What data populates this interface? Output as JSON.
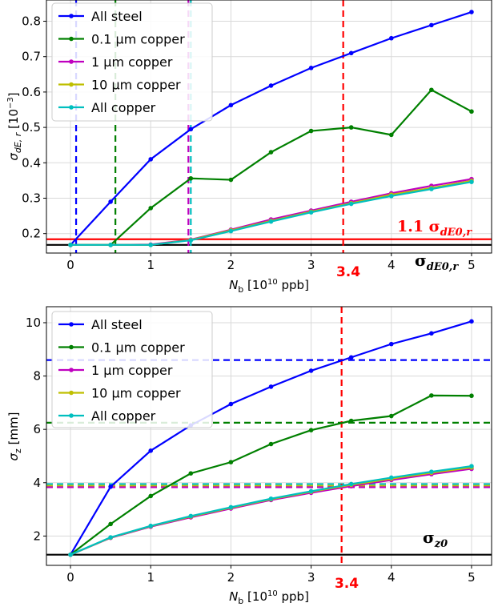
{
  "chart_data": [
    {
      "type": "line",
      "ylabel_main": "σ",
      "ylabel_sub": "dE, r",
      "ylabel_unit": " [10",
      "ylabel_exp": "−3",
      "ylabel_end": "]",
      "xlabel_main": "N",
      "xlabel_sub": "b",
      "xlabel_unit": " [10",
      "xlabel_exp": "10",
      "xlabel_end": " ppb]",
      "xlim": [
        -0.3,
        5.25
      ],
      "ylim": [
        0.145,
        0.86
      ],
      "xticks": [
        0,
        1,
        2,
        3,
        4,
        5
      ],
      "yticks": [
        0.2,
        0.3,
        0.4,
        0.5,
        0.6,
        0.7,
        0.8
      ],
      "ytick_labels": [
        "0.2",
        "0.3",
        "0.4",
        "0.5",
        "0.6",
        "0.7",
        "0.8"
      ],
      "grid": true,
      "legend_position": "top-left",
      "series": [
        {
          "name": "All steel",
          "color": "#0000ff",
          "x": [
            0,
            0.5,
            1,
            1.5,
            2,
            2.5,
            3,
            3.5,
            4,
            4.5,
            5
          ],
          "y": [
            0.168,
            0.29,
            0.41,
            0.495,
            0.563,
            0.618,
            0.668,
            0.71,
            0.752,
            0.789,
            0.826
          ]
        },
        {
          "name": "0.1 µm copper",
          "color": "#008000",
          "x": [
            0,
            0.5,
            1,
            1.5,
            2,
            2.5,
            3,
            3.5,
            4,
            4.5,
            5
          ],
          "y": [
            0.168,
            0.168,
            0.272,
            0.356,
            0.352,
            0.43,
            0.49,
            0.5,
            0.479,
            0.606,
            0.545
          ]
        },
        {
          "name": "1 µm copper",
          "color": "#bf00bf",
          "x": [
            0,
            0.5,
            1,
            1.5,
            2,
            2.5,
            3,
            3.5,
            4,
            4.5,
            5
          ],
          "y": [
            0.168,
            0.168,
            0.169,
            0.183,
            0.211,
            0.24,
            0.265,
            0.29,
            0.314,
            0.335,
            0.354
          ]
        },
        {
          "name": "10 µm copper",
          "color": "#bfbf00",
          "x": [
            0,
            0.5,
            1,
            1.5,
            2,
            2.5,
            3,
            3.5,
            4,
            4.5,
            5
          ],
          "y": [
            0.168,
            0.168,
            0.168,
            0.182,
            0.209,
            0.236,
            0.262,
            0.286,
            0.31,
            0.329,
            0.349
          ]
        },
        {
          "name": "All copper",
          "color": "#00bfbf",
          "x": [
            0,
            0.5,
            1,
            1.5,
            2,
            2.5,
            3,
            3.5,
            4,
            4.5,
            5
          ],
          "y": [
            0.168,
            0.168,
            0.168,
            0.181,
            0.207,
            0.234,
            0.26,
            0.284,
            0.306,
            0.326,
            0.346
          ]
        }
      ],
      "vlines": [
        {
          "x": 0.07,
          "color": "#0000ff"
        },
        {
          "x": 0.56,
          "color": "#008000"
        },
        {
          "x": 1.47,
          "color": "#bf00bf"
        },
        {
          "x": 1.5,
          "color": "#00bfbf"
        },
        {
          "x": 3.4,
          "color": "#ff0000"
        }
      ],
      "hlines": [
        {
          "y": 0.168,
          "color": "#000000",
          "style": "solid"
        },
        {
          "y": 0.184,
          "color": "#ff0000",
          "style": "solid"
        }
      ],
      "annotations": {
        "red_line_label": "1.1 σ",
        "red_line_sub": "dE0,r",
        "black_line_label": "σ",
        "black_line_sub": "dE0,r",
        "red_x_label": "3.4"
      }
    },
    {
      "type": "line",
      "ylabel_main": "σ",
      "ylabel_sub": "z",
      "ylabel_unit": " [mm]",
      "xlabel_main": "N",
      "xlabel_sub": "b",
      "xlabel_unit": " [10",
      "xlabel_exp": "10",
      "xlabel_end": " ppb]",
      "xlim": [
        -0.3,
        5.25
      ],
      "ylim": [
        0.9,
        10.6
      ],
      "xticks": [
        0,
        1,
        2,
        3,
        4,
        5
      ],
      "yticks": [
        2,
        4,
        6,
        8,
        10
      ],
      "ytick_labels": [
        "2",
        "4",
        "6",
        "8",
        "10"
      ],
      "grid": true,
      "legend_position": "top-left",
      "series": [
        {
          "name": "All steel",
          "color": "#0000ff",
          "x": [
            0,
            0.5,
            1,
            1.5,
            2,
            2.5,
            3,
            3.5,
            4,
            4.5,
            5
          ],
          "y": [
            1.3,
            3.85,
            5.2,
            6.15,
            6.95,
            7.6,
            8.2,
            8.7,
            9.2,
            9.6,
            10.05
          ]
        },
        {
          "name": "0.1 µm copper",
          "color": "#008000",
          "x": [
            0,
            0.5,
            1,
            1.5,
            2,
            2.5,
            3,
            3.5,
            4,
            4.5,
            5
          ],
          "y": [
            1.3,
            2.45,
            3.5,
            4.35,
            4.77,
            5.45,
            5.97,
            6.32,
            6.5,
            7.27,
            7.26
          ]
        },
        {
          "name": "1 µm copper",
          "color": "#bf00bf",
          "x": [
            0,
            0.5,
            1,
            1.5,
            2,
            2.5,
            3,
            3.5,
            4,
            4.5,
            5
          ],
          "y": [
            1.3,
            1.93,
            2.35,
            2.7,
            3.03,
            3.35,
            3.62,
            3.87,
            4.1,
            4.32,
            4.52
          ]
        },
        {
          "name": "10 µm copper",
          "color": "#bfbf00",
          "x": [
            0,
            0.5,
            1,
            1.5,
            2,
            2.5,
            3,
            3.5,
            4,
            4.5,
            5
          ],
          "y": [
            1.3,
            1.94,
            2.37,
            2.73,
            3.06,
            3.38,
            3.66,
            3.92,
            4.15,
            4.37,
            4.57
          ]
        },
        {
          "name": "All copper",
          "color": "#00bfbf",
          "x": [
            0,
            0.5,
            1,
            1.5,
            2,
            2.5,
            3,
            3.5,
            4,
            4.5,
            5
          ],
          "y": [
            1.3,
            1.95,
            2.38,
            2.75,
            3.08,
            3.4,
            3.68,
            3.95,
            4.19,
            4.41,
            4.62
          ]
        }
      ],
      "vlines": [
        {
          "x": 3.38,
          "color": "#ff0000"
        }
      ],
      "hlines": [
        {
          "y": 1.3,
          "color": "#000000",
          "style": "solid"
        },
        {
          "y": 8.6,
          "color": "#0000ff",
          "style": "dashed"
        },
        {
          "y": 6.25,
          "color": "#008000",
          "style": "dashed"
        },
        {
          "y": 3.95,
          "color": "#00bfbf",
          "style": "dashed"
        },
        {
          "y": 3.88,
          "color": "#bfbf00",
          "style": "dashed"
        },
        {
          "y": 3.83,
          "color": "#bf00bf",
          "style": "dashed"
        }
      ],
      "annotations": {
        "black_line_label": "σ",
        "black_line_sub": "z0",
        "red_x_label": "3.4"
      }
    }
  ]
}
